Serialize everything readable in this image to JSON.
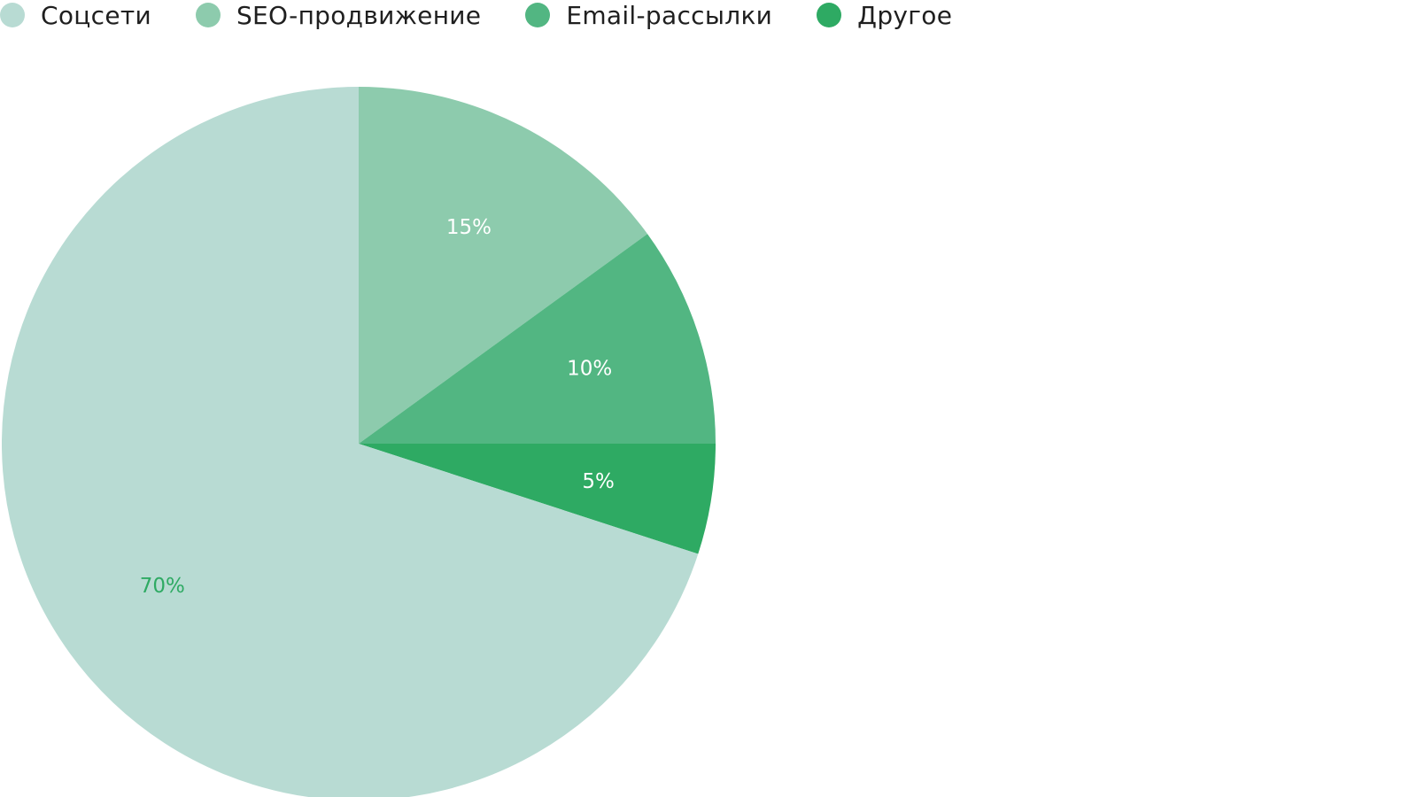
{
  "chart_data": {
    "type": "pie",
    "title": "",
    "start": "top",
    "direction": "clockwise",
    "legend_position": "top-left",
    "slices": [
      {
        "name": "SEO-продвижение",
        "value": 15,
        "label": "15%",
        "color": "#8dcbad",
        "label_color": "#ffffff"
      },
      {
        "name": "Email-рассылки",
        "value": 10,
        "label": "10%",
        "color": "#52b682",
        "label_color": "#ffffff"
      },
      {
        "name": "Другое",
        "value": 5,
        "label": "5%",
        "color": "#2eaa63",
        "label_color": "#ffffff"
      },
      {
        "name": "Соцсети",
        "value": 70,
        "label": "70%",
        "color": "#b8dbd3",
        "label_color": "#2eaa63"
      }
    ]
  },
  "legend": {
    "items": [
      {
        "label": "Соцсети",
        "color": "#b8dbd3"
      },
      {
        "label": "SEO-продвижение",
        "color": "#8dcbad"
      },
      {
        "label": "Email-рассылки",
        "color": "#52b682"
      },
      {
        "label": "Другое",
        "color": "#2eaa63"
      }
    ]
  }
}
